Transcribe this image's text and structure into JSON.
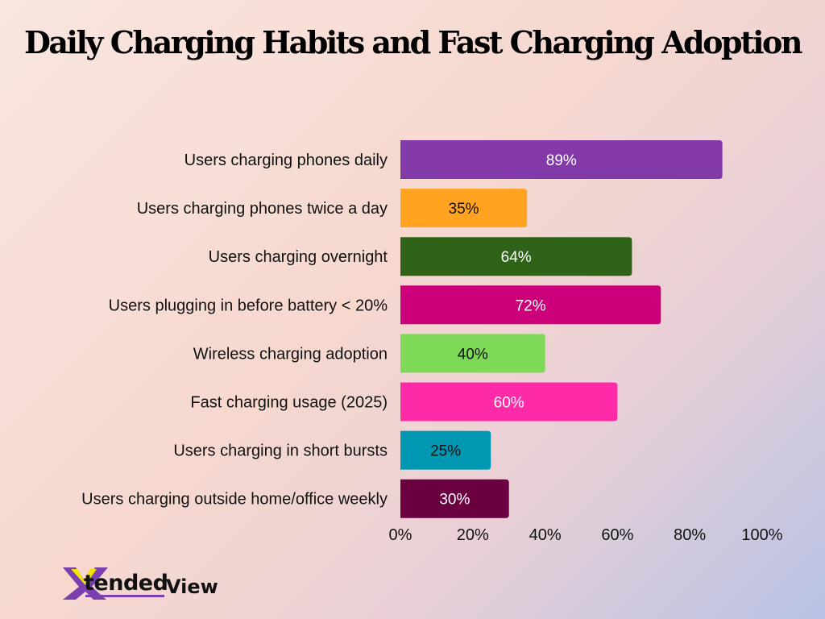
{
  "chart_data": {
    "type": "bar",
    "orientation": "horizontal",
    "title": "Daily Charging Habits and Fast Charging Adoption",
    "categories": [
      "Users charging phones daily",
      "Users charging phones twice a day",
      "Users charging overnight",
      "Users plugging in before battery < 20%",
      "Wireless charging adoption",
      "Fast charging usage (2025)",
      "Users charging in short bursts",
      "Users charging outside home/office weekly"
    ],
    "values": [
      89,
      35,
      64,
      72,
      40,
      60,
      25,
      30
    ],
    "data_labels": [
      "89%",
      "35%",
      "64%",
      "72%",
      "40%",
      "60%",
      "25%",
      "30%"
    ],
    "colors": [
      "#8339a8",
      "#ffa320",
      "#2e6318",
      "#cc007a",
      "#7ed957",
      "#ff2aa8",
      "#0097b2",
      "#6b0040"
    ],
    "label_colors": [
      "#ffffff",
      "#111111",
      "#ffffff",
      "#ffffff",
      "#111111",
      "#ffffff",
      "#111111",
      "#ffffff"
    ],
    "xlim": [
      0,
      100
    ],
    "xticks": [
      "0%",
      "20%",
      "40%",
      "60%",
      "80%",
      "100%"
    ],
    "grid": false,
    "legend": "none"
  },
  "logo": {
    "text": "XtendedView",
    "part1": "tended",
    "part2": "View"
  }
}
